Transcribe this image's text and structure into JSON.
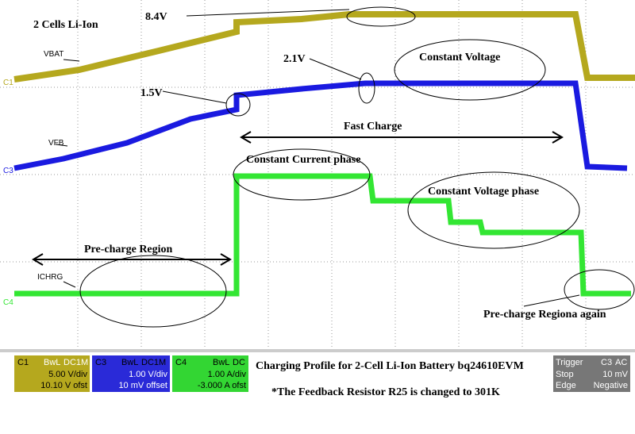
{
  "plot": {
    "title": "2 Cells Li-Ion",
    "annotations": {
      "v84": "8.4V",
      "v21": "2.1V",
      "v15": "1.5V",
      "cv": "Constant Voltage",
      "fast": "Fast Charge",
      "cc": "Constant Current phase",
      "cvp": "Constant Voltage phase",
      "pre": "Pre-charge Region",
      "pre2": "Pre-charge Regiona again"
    },
    "traces": {
      "vbat": {
        "label": "VBAT",
        "channel": "C1"
      },
      "vfb": {
        "label": "VFB",
        "channel": "C3"
      },
      "ichrg": {
        "label": "ICHRG",
        "channel": "C4"
      }
    }
  },
  "channels": [
    {
      "name": "C1",
      "bw": "BwL",
      "coupling": "DC1M",
      "scale": "5.00 V/div",
      "offset": "10.10 V ofst"
    },
    {
      "name": "C3",
      "bw": "BwL",
      "coupling": "DC1M",
      "scale": "1.00 V/div",
      "offset": "10 mV offset"
    },
    {
      "name": "C4",
      "bw": "BwL",
      "coupling": "DC",
      "scale": "1.00 A/div",
      "offset": "-3.000 A ofst"
    }
  ],
  "caption": {
    "line1": "Charging Profile for 2-Cell Li-Ion Battery bq24610EVM",
    "line2": "*The Feedback Resistor R25 is changed to 301K"
  },
  "trigger": {
    "title": "Trigger",
    "channel": "C3",
    "coupling": "AC",
    "mode": "Stop",
    "level": "10 mV",
    "type": "Edge",
    "slope": "Negative"
  }
}
